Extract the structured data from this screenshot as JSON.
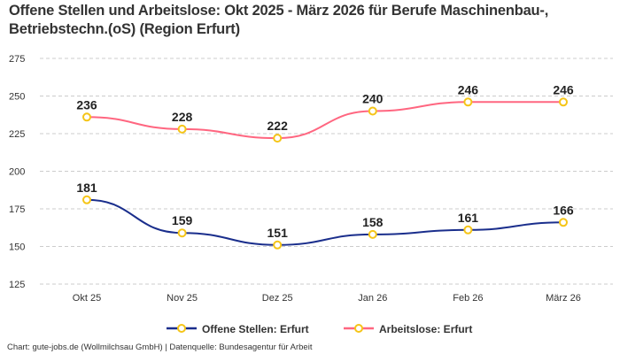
{
  "chart_data": {
    "type": "line",
    "title": "Offene Stellen und Arbeitslose: Okt 2025 - März 2026 für Berufe Maschinenbau-, Betriebstechn.(oS) (Region Erfurt)",
    "categories": [
      "Okt 25",
      "Nov 25",
      "Dez 25",
      "Jan 26",
      "Feb 26",
      "März 26"
    ],
    "yticks": [
      125,
      150,
      175,
      200,
      225,
      250,
      275
    ],
    "ylim": [
      125,
      275
    ],
    "grid": true,
    "legend_position": "bottom",
    "series": [
      {
        "name": "Offene Stellen: Erfurt",
        "color": "#1a2e8c",
        "values": [
          181,
          159,
          151,
          158,
          161,
          166
        ]
      },
      {
        "name": "Arbeitslose: Erfurt",
        "color": "#ff6680",
        "values": [
          236,
          228,
          222,
          240,
          246,
          246
        ]
      }
    ],
    "marker_color": "#f5c518"
  },
  "footer": "Chart: gute-jobs.de (Wollmilchsau GmbH) | Datenquelle: Bundesagentur für Arbeit"
}
